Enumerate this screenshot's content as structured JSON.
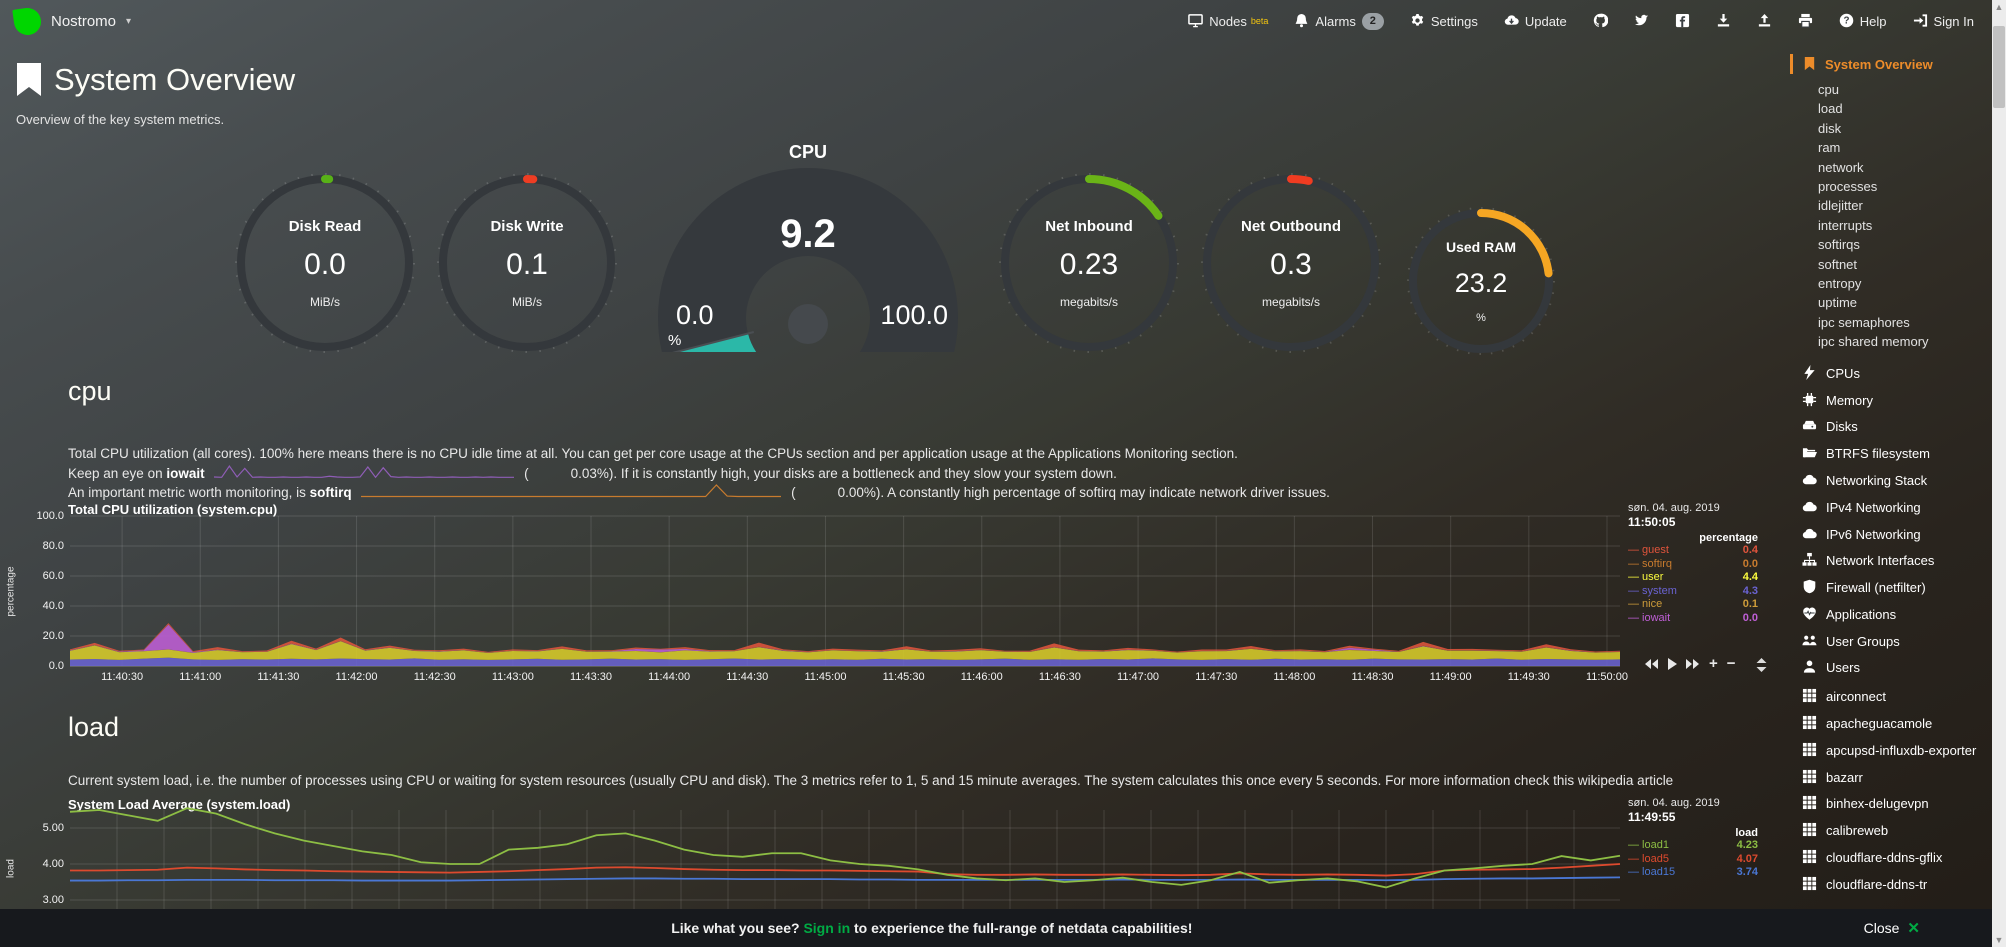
{
  "colors": {
    "accent_orange": "#ED8C2A",
    "logo_green": "#00D600",
    "signin_green": "#00AB44",
    "teal": "#2BB8A8"
  },
  "navbar": {
    "brand": "Nostromo",
    "nodes": "Nodes",
    "nodes_badge": "beta",
    "alarms": "Alarms",
    "alarms_count": "2",
    "settings": "Settings",
    "update": "Update",
    "help": "Help",
    "signin": "Sign In"
  },
  "header": {
    "title": "System Overview",
    "subtitle": "Overview of the key system metrics."
  },
  "gauges": [
    {
      "title": "Disk Read",
      "value": "0.0",
      "units": "MiB/s",
      "color": "#58B117",
      "fraction": 0.008
    },
    {
      "title": "Disk Write",
      "value": "0.1",
      "units": "MiB/s",
      "color": "#EE3D23",
      "fraction": 0.012
    },
    {
      "title": "CPU",
      "value": "9.2",
      "units": "%",
      "min": "0.0",
      "max": "100.0",
      "color": "#2BB8A8",
      "fraction": 0.092
    },
    {
      "title": "Net Inbound",
      "value": "0.23",
      "units": "megabits/s",
      "color": "#6AB417",
      "fraction": 0.155
    },
    {
      "title": "Net Outbound",
      "value": "0.3",
      "units": "megabits/s",
      "color": "#F03C21",
      "fraction": 0.034
    },
    {
      "title": "Used RAM",
      "value": "23.2",
      "units": "%",
      "color": "#F5A623",
      "fraction": 0.232
    }
  ],
  "cpu_section": {
    "heading": "cpu",
    "desc1": "Total CPU utilization (all cores). 100% here means there is no CPU idle time at all. You can get per core usage at the CPUs section and per application usage at the Applications Monitoring section.",
    "desc2_pre": "Keep an eye on ",
    "desc2_bold": "iowait",
    "desc2_open": "(",
    "desc2_value": "0.03%",
    "desc2_post": "). If it is constantly high, your disks are a bottleneck and they slow your system down.",
    "desc3_pre": "An important metric worth monitoring, is ",
    "desc3_bold": "softirq",
    "desc3_open": "(",
    "desc3_value": "0.00%",
    "desc3_post": "). A constantly high percentage of softirq may indicate network driver issues."
  },
  "load_section": {
    "heading": "load",
    "desc": "Current system load, i.e. the number of processes using CPU or waiting for system resources (usually CPU and disk). The 3 metrics refer to 1, 5 and 15 minute averages. The system calculates this once every 5 seconds. For more information check this wikipedia article"
  },
  "bottom_bar": {
    "pre": "Like what you see? ",
    "signin": "Sign in",
    "post": " to experience the full-range of netdata capabilities!",
    "close": "Close",
    "close_x": "✕"
  },
  "sidebar": {
    "active": {
      "label": "System Overview",
      "icon": "bookmark"
    },
    "subitems": [
      "cpu",
      "load",
      "disk",
      "ram",
      "network",
      "processes",
      "idlejitter",
      "interrupts",
      "softirqs",
      "softnet",
      "entropy",
      "uptime",
      "ipc semaphores",
      "ipc shared memory"
    ],
    "sections": [
      {
        "label": "CPUs",
        "icon": "bolt"
      },
      {
        "label": "Memory",
        "icon": "microchip"
      },
      {
        "label": "Disks",
        "icon": "hdd"
      },
      {
        "label": "BTRFS filesystem",
        "icon": "folder-open"
      },
      {
        "label": "Networking Stack",
        "icon": "cloud"
      },
      {
        "label": "IPv4 Networking",
        "icon": "cloud"
      },
      {
        "label": "IPv6 Networking",
        "icon": "cloud"
      },
      {
        "label": "Network Interfaces",
        "icon": "sitemap"
      },
      {
        "label": "Firewall (netfilter)",
        "icon": "shield"
      },
      {
        "label": "Applications",
        "icon": "heartbeat"
      },
      {
        "label": "User Groups",
        "icon": "users"
      },
      {
        "label": "Users",
        "icon": "user"
      }
    ],
    "apps": [
      {
        "label": "airconnect",
        "icon": "grid"
      },
      {
        "label": "apacheguacamole",
        "icon": "grid"
      },
      {
        "label": "apcupsd-influxdb-exporter",
        "icon": "grid"
      },
      {
        "label": "bazarr",
        "icon": "grid"
      },
      {
        "label": "binhex-delugevpn",
        "icon": "grid"
      },
      {
        "label": "calibreweb",
        "icon": "grid"
      },
      {
        "label": "cloudflare-ddns-gflix",
        "icon": "grid"
      },
      {
        "label": "cloudflare-ddns-tr",
        "icon": "grid"
      }
    ]
  },
  "chart_data": [
    {
      "type": "area",
      "title": "Total CPU utilization (system.cpu)",
      "ylabel": "percentage",
      "ylim": [
        0,
        100
      ],
      "yticks": [
        0,
        20,
        40,
        60,
        80,
        100
      ],
      "ytick_labels": [
        "0.0",
        "20.0",
        "40.0",
        "60.0",
        "80.0",
        "100.0"
      ],
      "xticks": [
        "11:40:30",
        "11:41:00",
        "11:41:30",
        "11:42:00",
        "11:42:30",
        "11:43:00",
        "11:43:30",
        "11:44:00",
        "11:44:30",
        "11:45:00",
        "11:45:30",
        "11:46:00",
        "11:46:30",
        "11:47:00",
        "11:47:30",
        "11:48:00",
        "11:48:30",
        "11:49:00",
        "11:49:30",
        "11:50:00"
      ],
      "legend_date": "søn. 04. aug. 2019",
      "legend_time": "11:50:05",
      "legend_units": "percentage",
      "grid": true,
      "legend_position": "right",
      "stack_order": [
        "system",
        "user",
        "nice",
        "iowait",
        "softirq",
        "guest"
      ],
      "series": [
        {
          "name": "guest",
          "color": "#E0543C",
          "value": "0.4",
          "values": [
            0.6,
            1.4,
            0.5,
            0.4,
            0.9,
            0.5,
            1.6,
            0.4,
            0.6,
            1.8,
            0.7,
            2.2,
            0.6,
            1.2,
            0.5,
            0.6,
            0.9,
            0.4,
            0.8,
            0.5,
            1.4,
            0.6,
            0.5,
            0.9,
            0.4,
            1.1,
            0.6,
            0.5,
            2.8,
            0.7,
            0.5,
            0.9,
            0.8,
            0.5,
            1.8,
            0.5,
            0.8,
            1.0,
            0.4,
            0.6,
            2.4,
            0.8,
            0.5,
            1.1,
            0.6,
            0.4,
            0.9,
            0.7,
            1.6,
            0.5,
            0.8,
            0.5,
            1.2,
            0.6,
            0.5,
            2.6,
            0.8,
            0.9,
            0.5,
            0.6,
            1.9,
            0.8,
            0.5,
            0.6
          ]
        },
        {
          "name": "softirq",
          "color": "#C87B2E",
          "value": "0.0",
          "values": 0.1
        },
        {
          "name": "user",
          "color": "#D8CC2A",
          "value": "4.4",
          "hl": true,
          "values": [
            5.8,
            9.0,
            5.1,
            4.9,
            5.4,
            4.3,
            6.5,
            4.6,
            5.1,
            9.8,
            6.2,
            11.5,
            5.6,
            7.8,
            4.9,
            5.3,
            5.9,
            4.6,
            5.6,
            4.9,
            7.2,
            5.1,
            4.7,
            5.7,
            4.5,
            6.3,
            5.1,
            4.8,
            8.2,
            5.3,
            4.9,
            5.9,
            5.6,
            4.7,
            6.8,
            4.9,
            5.5,
            6.1,
            4.6,
            5.1,
            7.8,
            5.6,
            4.9,
            6.3,
            5.1,
            4.5,
            5.7,
            5.3,
            7.2,
            4.9,
            5.6,
            4.7,
            6.5,
            5.1,
            4.9,
            8.8,
            5.6,
            5.9,
            4.9,
            5.3,
            7.6,
            5.6,
            4.7,
            4.9
          ]
        },
        {
          "name": "system",
          "color": "#6A63D2",
          "value": "4.3",
          "values": [
            4.3,
            4.7,
            4.1,
            4.9,
            5.6,
            4.4,
            4.1,
            4.6,
            4.3,
            4.8,
            4.4,
            5.0,
            4.6,
            4.3,
            5.1,
            4.2,
            4.5,
            4.1,
            4.4,
            4.8,
            4.2,
            4.4,
            4.9,
            4.3,
            4.6,
            4.1,
            4.5,
            5.0,
            4.3,
            4.7,
            4.2,
            4.5,
            4.2,
            4.8,
            4.3,
            4.6,
            4.1,
            4.4,
            4.9,
            4.2,
            4.5,
            4.2,
            4.7,
            4.3,
            5.1,
            4.4,
            4.1,
            4.6,
            4.2,
            4.8,
            4.3,
            4.5,
            4.2,
            4.9,
            4.4,
            4.3,
            4.6,
            4.3,
            5.0,
            4.2,
            4.7,
            4.4,
            4.2,
            4.4
          ]
        },
        {
          "name": "nice",
          "color": "#CE9C3A",
          "value": "0.1",
          "values": 0.1
        },
        {
          "name": "iowait",
          "color": "#BF5FD6",
          "value": "0.0",
          "values": [
            0.2,
            0.1,
            0.3,
            0.6,
            16.5,
            0.5,
            0.2,
            0.1,
            0.1,
            0.2,
            0.1,
            0.1,
            0.2,
            0.1,
            0.1,
            0.2,
            0.1,
            0.1,
            0.1,
            0.2,
            0.1,
            0.1,
            0.2,
            1.2,
            1.8,
            0.9,
            0.2,
            0.1,
            0.1,
            0.2,
            0.1,
            0.1,
            0.1,
            0.2,
            0.1,
            0.1,
            0.2,
            0.1,
            0.1,
            0.1,
            0.2,
            0.1,
            0.1,
            0.2,
            0.1,
            0.1,
            0.1,
            0.2,
            0.1,
            0.1,
            0.2,
            0.1,
            1.4,
            0.8,
            0.1,
            0.2,
            0.1,
            0.1,
            0.2,
            0.1,
            0.1,
            0.2,
            0.1,
            0.1
          ]
        }
      ]
    },
    {
      "type": "line",
      "title": "System Load Average (system.load)",
      "ylabel": "load",
      "ylim": [
        1.89,
        5.5
      ],
      "yticks": [
        3,
        4,
        5
      ],
      "ytick_labels": [
        "3.00",
        "4.00",
        "5.00"
      ],
      "legend_date": "søn. 04. aug. 2019",
      "legend_time": "11:49:55",
      "legend_units": "load",
      "grid": true,
      "legend_position": "right",
      "series": [
        {
          "name": "load1",
          "color": "#8DBE44",
          "value": "4.23",
          "values": [
            5.45,
            5.5,
            5.35,
            5.2,
            5.55,
            5.4,
            5.1,
            4.85,
            4.65,
            4.5,
            4.35,
            4.25,
            4.05,
            4.0,
            4.0,
            4.4,
            4.45,
            4.55,
            4.8,
            4.85,
            4.65,
            4.4,
            4.25,
            4.2,
            4.3,
            4.3,
            4.1,
            4.0,
            3.95,
            3.85,
            3.7,
            3.6,
            3.55,
            3.6,
            3.5,
            3.55,
            3.62,
            3.5,
            3.42,
            3.55,
            3.78,
            3.48,
            3.55,
            3.6,
            3.52,
            3.35,
            3.6,
            3.82,
            3.88,
            3.95,
            4.0,
            4.22,
            4.1,
            4.23
          ]
        },
        {
          "name": "load5",
          "color": "#DD4A2E",
          "value": "4.07",
          "values": [
            3.82,
            3.82,
            3.83,
            3.84,
            3.9,
            3.88,
            3.85,
            3.83,
            3.82,
            3.8,
            3.79,
            3.78,
            3.77,
            3.76,
            3.78,
            3.8,
            3.83,
            3.86,
            3.9,
            3.91,
            3.89,
            3.86,
            3.84,
            3.83,
            3.83,
            3.82,
            3.82,
            3.81,
            3.8,
            3.79,
            3.72,
            3.7,
            3.7,
            3.71,
            3.7,
            3.7,
            3.71,
            3.7,
            3.69,
            3.7,
            3.74,
            3.71,
            3.7,
            3.71,
            3.7,
            3.68,
            3.72,
            3.82,
            3.84,
            3.85,
            3.86,
            3.9,
            3.95,
            4.0
          ]
        },
        {
          "name": "load15",
          "color": "#4A77D4",
          "value": "3.74",
          "values": [
            3.54,
            3.54,
            3.55,
            3.55,
            3.56,
            3.56,
            3.56,
            3.55,
            3.55,
            3.55,
            3.54,
            3.54,
            3.54,
            3.54,
            3.55,
            3.56,
            3.57,
            3.58,
            3.59,
            3.6,
            3.6,
            3.59,
            3.59,
            3.58,
            3.58,
            3.58,
            3.58,
            3.57,
            3.57,
            3.56,
            3.56,
            3.56,
            3.56,
            3.56,
            3.56,
            3.56,
            3.57,
            3.56,
            3.56,
            3.56,
            3.57,
            3.56,
            3.56,
            3.56,
            3.56,
            3.55,
            3.56,
            3.58,
            3.59,
            3.6,
            3.6,
            3.61,
            3.62,
            3.63
          ]
        }
      ]
    },
    {
      "type": "sparkline",
      "name": "iowait-sparkline",
      "color": "#8F5DB7",
      "values": [
        0.3,
        0.2,
        3.5,
        0.3,
        2.8,
        0.2,
        0.3,
        0.2,
        0.2,
        0.3,
        0.2,
        0.2,
        0.3,
        0.2,
        0.2,
        0.5,
        0.3,
        0.2,
        0.2,
        0.3,
        3.2,
        0.2,
        3.0,
        0.4,
        0.2,
        0.3,
        0.2,
        0.2,
        0.3,
        0.2,
        0.2,
        0.3,
        0.2,
        0.2,
        0.3,
        0.2,
        0.3,
        0.2,
        0.2,
        0.2
      ]
    },
    {
      "type": "sparkline",
      "name": "softirq-sparkline",
      "color": "#C87B2E",
      "values": [
        0.1,
        0.1,
        0.1,
        0.1,
        0.1,
        0.1,
        0.1,
        0.1,
        0.1,
        0.1,
        0.1,
        0.1,
        0.1,
        0.1,
        0.1,
        0.1,
        0.1,
        0.1,
        0.1,
        0.1,
        0.1,
        0.1,
        0.1,
        0.1,
        0.1,
        0.1,
        0.1,
        0.1,
        0.1,
        0.1,
        0.1,
        0.1,
        0.1,
        2.5,
        0.2,
        0.1,
        0.1,
        0.1,
        0.1,
        0.1
      ]
    }
  ]
}
